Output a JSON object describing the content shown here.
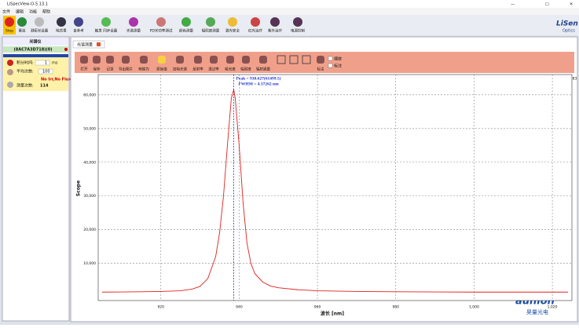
{
  "window": {
    "title": "LiSpecView-O-5.13.1"
  },
  "menu": [
    "文件",
    "编辑",
    "功能",
    "帮助"
  ],
  "toolbar": [
    "Stop",
    "重连",
    "测距光设置",
    "暗背景",
    "自参考",
    "触发 同步设置",
    "光谱测量",
    "PD光功率测试",
    "颜色测量",
    "辐照度测量",
    "激光安全",
    "红光治疗",
    "紫外治疗",
    "电源控制"
  ],
  "logo": {
    "name": "LiSen",
    "sub": "Optics"
  },
  "device_panel": {
    "title": "光谱仪",
    "device": "(8AC7A3D718)(0)",
    "integration_label": "积分时间:",
    "integration_value": "1",
    "integration_unit": "ms",
    "average_label": "平均次数:",
    "average_value": "100",
    "status": "No Irr,No Flux",
    "count_label": "测量次数:",
    "count_value": "114"
  },
  "tab": "光谱测量",
  "chart_toolbar": [
    "打开",
    "保存",
    "记录",
    "导出图片",
    "转换为",
    "原始值",
    "扣暗光谱",
    "反射率",
    "透过率",
    "吸光度",
    "辐照度",
    "辐射通量",
    "标注"
  ],
  "checkboxes": [
    "缩放",
    "标注"
  ],
  "cursor": "1007.3300, 65592.0483",
  "chart_data": {
    "type": "line",
    "peak_label": "Peak = 938.627(61499.5)",
    "fwhm_label": "FWHM = 4.37262 nm",
    "peak": {
      "x": 938.627
    },
    "x_label": "波长 [nm]",
    "y_label": "Scope",
    "x": [
      905,
      910,
      915,
      920,
      925,
      928,
      930,
      932,
      934,
      935,
      936,
      937,
      938,
      938.627,
      939,
      940,
      941,
      942,
      943,
      944,
      946,
      948,
      950,
      955,
      960,
      970,
      980,
      990,
      1000,
      1010,
      1020,
      1024
    ],
    "series": [
      {
        "name": "Scope",
        "color": "#e02020",
        "values": [
          1500,
          1550,
          1600,
          1700,
          1900,
          2400,
          3200,
          5500,
          12000,
          19000,
          30000,
          45000,
          59000,
          61499.5,
          59000,
          45000,
          28000,
          16000,
          10000,
          7000,
          4500,
          3300,
          2800,
          2200,
          1900,
          1700,
          1600,
          1550,
          1500,
          1500,
          1500,
          1500
        ]
      }
    ],
    "xlim": [
      904,
      1025
    ],
    "ylim": [
      -1000,
      66000
    ],
    "xticks": [
      920,
      940,
      960,
      980,
      {
        "value": 1000,
        "label": "1,000"
      },
      {
        "value": 1020,
        "label": "1,020"
      }
    ],
    "yticks": [
      {
        "value": 10000,
        "label": "10,000"
      },
      {
        "value": 20000,
        "label": "20,000"
      },
      {
        "value": 30000,
        "label": "30,000"
      },
      {
        "value": 40000,
        "label": "40,000"
      },
      {
        "value": 50000,
        "label": "50,000"
      },
      {
        "value": 60000,
        "label": "60,000"
      }
    ],
    "grid": true
  },
  "watermark": {
    "name": "aunion",
    "sub": "昊量光电"
  }
}
